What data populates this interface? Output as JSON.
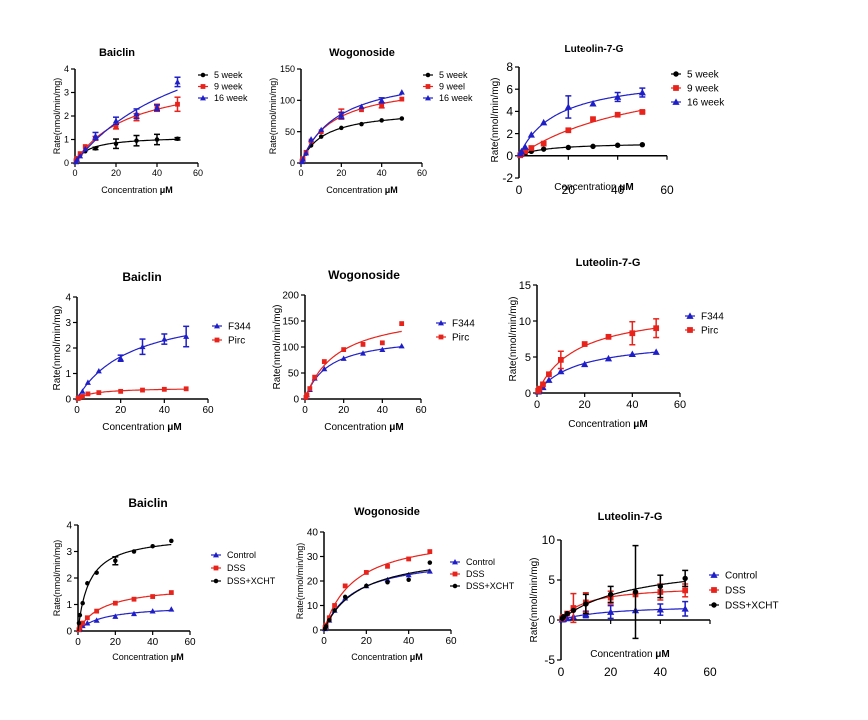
{
  "chart_data": [
    {
      "type": "scatter",
      "title": "Baiclin",
      "xlabel": "Concentration ",
      "xunit": "μM",
      "ylabel": "Rate(nmol/min/mg)",
      "xlim": [
        0,
        60
      ],
      "ylim": [
        0,
        4
      ],
      "xticks": [
        0,
        20,
        40,
        60
      ],
      "yticks": [
        0,
        1,
        2,
        3,
        4
      ],
      "legend": "right",
      "grid": false,
      "series": [
        {
          "name": "5 week",
          "color": "#000000",
          "marker": "circle",
          "x": [
            0.5,
            1,
            2.5,
            5,
            10,
            20,
            30,
            40,
            50
          ],
          "y": [
            0.12,
            0.2,
            0.35,
            0.5,
            0.62,
            0.82,
            0.95,
            1.0,
            1.03
          ],
          "err": [
            0,
            0,
            0,
            0,
            0.05,
            0.2,
            0.22,
            0.22,
            0.05
          ]
        },
        {
          "name": "9 week",
          "color": "#e8231b",
          "marker": "square",
          "x": [
            0.5,
            1,
            2.5,
            5,
            10,
            20,
            30,
            40,
            50
          ],
          "y": [
            0.1,
            0.2,
            0.4,
            0.7,
            1.05,
            1.55,
            1.95,
            2.35,
            2.5
          ],
          "err": [
            0,
            0,
            0,
            0,
            0.08,
            0.1,
            0.15,
            0.15,
            0.3
          ]
        },
        {
          "name": "16 week",
          "color": "#1f1fc8",
          "marker": "triangle",
          "x": [
            0.5,
            1,
            2.5,
            5,
            10,
            20,
            30,
            40,
            50
          ],
          "y": [
            0.05,
            0.15,
            0.3,
            0.6,
            1.15,
            1.8,
            2.1,
            2.35,
            3.45
          ],
          "err": [
            0,
            0,
            0,
            0,
            0.15,
            0.15,
            0.2,
            0.12,
            0.2
          ]
        }
      ]
    },
    {
      "type": "scatter",
      "title": "Wogonoside",
      "xlabel": "Concentration ",
      "xunit": "μM",
      "ylabel": "Rate(nmol/min/mg)",
      "xlim": [
        0,
        60
      ],
      "ylim": [
        0,
        150
      ],
      "xticks": [
        0,
        20,
        40,
        60
      ],
      "yticks": [
        0,
        50,
        100,
        150
      ],
      "legend": "right",
      "grid": false,
      "series": [
        {
          "name": "5 week",
          "color": "#000000",
          "marker": "circle",
          "x": [
            0.5,
            1,
            2.5,
            5,
            10,
            20,
            30,
            40,
            50
          ],
          "y": [
            3,
            6,
            15,
            28,
            42,
            56,
            62,
            68,
            71
          ],
          "err": [
            0,
            0,
            0,
            0,
            0,
            0,
            0,
            0,
            0
          ]
        },
        {
          "name": "9 weel",
          "color": "#e8231b",
          "marker": "square",
          "x": [
            0.5,
            1,
            2.5,
            5,
            10,
            20,
            30,
            40,
            50
          ],
          "y": [
            3,
            7,
            17,
            35,
            50,
            78,
            85,
            92,
            102
          ],
          "err": [
            0,
            0,
            0,
            0,
            0,
            8,
            0,
            4,
            0
          ]
        },
        {
          "name": "16 week",
          "color": "#1f1fc8",
          "marker": "triangle",
          "x": [
            0.5,
            1,
            2.5,
            5,
            10,
            20,
            30,
            40,
            50
          ],
          "y": [
            2,
            6,
            16,
            38,
            53,
            76,
            90,
            100,
            113
          ],
          "err": [
            0,
            0,
            0,
            0,
            0,
            5,
            0,
            4,
            0
          ]
        }
      ]
    },
    {
      "type": "scatter",
      "title": "Luteolin-7-G",
      "xlabel": "Concentration ",
      "xunit": "μM",
      "ylabel": "Rate(nmol/min/mg)",
      "xlim": [
        0,
        60
      ],
      "ylim": [
        -2,
        8
      ],
      "xticks": [
        0,
        20,
        40,
        60
      ],
      "yticks": [
        -2,
        0,
        2,
        4,
        6,
        8
      ],
      "legend": "right",
      "grid": false,
      "series": [
        {
          "name": "5 week",
          "color": "#000000",
          "marker": "circle",
          "x": [
            0.5,
            1,
            2.5,
            5,
            10,
            20,
            30,
            40,
            50
          ],
          "y": [
            0.05,
            0.1,
            0.2,
            0.4,
            0.6,
            0.75,
            0.85,
            0.95,
            1.0
          ],
          "err": [
            0,
            0,
            0,
            0,
            0,
            0,
            0,
            0,
            0
          ]
        },
        {
          "name": "9 week",
          "color": "#e8231b",
          "marker": "square",
          "x": [
            0.5,
            1,
            2.5,
            5,
            10,
            20,
            30,
            40,
            50
          ],
          "y": [
            0.05,
            0.15,
            0.4,
            0.7,
            1.1,
            2.3,
            3.3,
            3.7,
            3.95
          ],
          "err": [
            0,
            0,
            0,
            0,
            0,
            0,
            0,
            0,
            0.1
          ]
        },
        {
          "name": "16 week",
          "color": "#1f1fc8",
          "marker": "triangle",
          "x": [
            0.5,
            1,
            2.5,
            5,
            10,
            20,
            30,
            40,
            50
          ],
          "y": [
            0.2,
            0.4,
            0.8,
            1.9,
            3.0,
            4.4,
            4.7,
            5.3,
            5.7
          ],
          "err": [
            0,
            0,
            0,
            0,
            0,
            1.0,
            0,
            0.4,
            0.4
          ]
        }
      ]
    },
    {
      "type": "scatter",
      "title": "Baiclin",
      "xlabel": "Concentration ",
      "xunit": "μM",
      "ylabel": "Rate(nmol/min/mg)",
      "xlim": [
        0,
        60
      ],
      "ylim": [
        0,
        4
      ],
      "xticks": [
        0,
        20,
        40,
        60
      ],
      "yticks": [
        0,
        1,
        2,
        3,
        4
      ],
      "legend": "right",
      "grid": false,
      "series": [
        {
          "name": "F344",
          "color": "#1f1fc8",
          "marker": "triangle",
          "x": [
            0.5,
            1,
            2.5,
            5,
            10,
            20,
            30,
            40,
            50
          ],
          "y": [
            0.05,
            0.1,
            0.3,
            0.65,
            1.1,
            1.6,
            2.05,
            2.35,
            2.45
          ],
          "err": [
            0,
            0,
            0,
            0,
            0,
            0.12,
            0.3,
            0.2,
            0.4
          ]
        },
        {
          "name": "Pirc",
          "color": "#e8231b",
          "marker": "square",
          "x": [
            0.5,
            1,
            2.5,
            5,
            10,
            20,
            30,
            40,
            50
          ],
          "y": [
            0.02,
            0.05,
            0.1,
            0.2,
            0.25,
            0.3,
            0.35,
            0.38,
            0.4
          ],
          "err": [
            0,
            0,
            0,
            0,
            0,
            0,
            0,
            0,
            0
          ]
        }
      ]
    },
    {
      "type": "scatter",
      "title": "Wogonoside",
      "xlabel": "Concentration ",
      "xunit": "μM",
      "ylabel": "Rate(nmol/min/mg)",
      "xlim": [
        0,
        60
      ],
      "ylim": [
        0,
        200
      ],
      "xticks": [
        0,
        20,
        40,
        60
      ],
      "yticks": [
        0,
        50,
        100,
        150,
        200
      ],
      "legend": "right",
      "grid": false,
      "series": [
        {
          "name": "F344",
          "color": "#1f1fc8",
          "marker": "triangle",
          "x": [
            0.5,
            1,
            2.5,
            5,
            10,
            20,
            30,
            40,
            50
          ],
          "y": [
            3,
            8,
            18,
            40,
            58,
            78,
            88,
            95,
            102
          ],
          "err": [
            0,
            0,
            0,
            0,
            0,
            0,
            0,
            0,
            0
          ]
        },
        {
          "name": "Pirc",
          "color": "#e8231b",
          "marker": "square",
          "x": [
            0.5,
            1,
            2.5,
            5,
            10,
            20,
            30,
            40,
            50
          ],
          "y": [
            3,
            8,
            20,
            42,
            72,
            95,
            105,
            108,
            145
          ],
          "err": [
            0,
            0,
            0,
            0,
            0,
            0,
            0,
            0,
            0
          ]
        }
      ]
    },
    {
      "type": "scatter",
      "title": "Luteolin-7-G",
      "xlabel": "Concentration ",
      "xunit": "μM",
      "ylabel": "Rate(nmol/min/mg)",
      "xlim": [
        0,
        60
      ],
      "ylim": [
        0,
        15
      ],
      "xticks": [
        0,
        20,
        40,
        60
      ],
      "yticks": [
        0,
        5,
        10,
        15
      ],
      "legend": "right",
      "grid": false,
      "series": [
        {
          "name": "F344",
          "color": "#1f1fc8",
          "marker": "triangle",
          "x": [
            0.5,
            1,
            2.5,
            5,
            10,
            20,
            30,
            40,
            50
          ],
          "y": [
            0.2,
            0.4,
            0.8,
            1.8,
            3.0,
            4.0,
            4.8,
            5.4,
            5.7
          ],
          "err": [
            0,
            0,
            0,
            0,
            0,
            0,
            0,
            0,
            0
          ]
        },
        {
          "name": "Pirc",
          "color": "#e8231b",
          "marker": "square",
          "x": [
            0.5,
            1,
            2.5,
            5,
            10,
            20,
            30,
            40,
            50
          ],
          "y": [
            0.3,
            0.6,
            1.2,
            2.6,
            4.6,
            6.8,
            7.8,
            8.3,
            9.0
          ],
          "err": [
            0,
            0,
            0,
            0,
            1.2,
            0,
            0,
            1.6,
            1.3
          ]
        }
      ]
    },
    {
      "type": "scatter",
      "title": "Baiclin",
      "xlabel": "Concentration ",
      "xunit": "μM",
      "ylabel": "Rate(nmol/min/mg)",
      "xlim": [
        0,
        60
      ],
      "ylim": [
        0,
        4
      ],
      "xticks": [
        0,
        20,
        40,
        60
      ],
      "yticks": [
        0,
        1,
        2,
        3,
        4
      ],
      "legend": "right",
      "grid": false,
      "series": [
        {
          "name": "Control",
          "color": "#1f1fc8",
          "marker": "triangle",
          "x": [
            0.5,
            1,
            2.5,
            5,
            10,
            20,
            30,
            40,
            50
          ],
          "y": [
            0.05,
            0.1,
            0.2,
            0.3,
            0.4,
            0.55,
            0.65,
            0.75,
            0.82
          ],
          "err": [
            0,
            0,
            0,
            0,
            0,
            0,
            0,
            0,
            0
          ]
        },
        {
          "name": "DSS",
          "color": "#e8231b",
          "marker": "square",
          "x": [
            0.5,
            1,
            2.5,
            5,
            10,
            20,
            30,
            40,
            50
          ],
          "y": [
            0.05,
            0.15,
            0.3,
            0.5,
            0.75,
            1.05,
            1.2,
            1.3,
            1.45
          ],
          "err": [
            0,
            0,
            0,
            0,
            0,
            0,
            0,
            0,
            0
          ]
        },
        {
          "name": "DSS+XCHT",
          "color": "#000000",
          "marker": "circle",
          "x": [
            0.5,
            1,
            2.5,
            5,
            10,
            20,
            30,
            40,
            50
          ],
          "y": [
            0.3,
            0.6,
            1.05,
            1.8,
            2.2,
            2.65,
            3.0,
            3.2,
            3.4
          ],
          "err": [
            0,
            0,
            0,
            0,
            0,
            0.15,
            0,
            0,
            0
          ]
        }
      ]
    },
    {
      "type": "scatter",
      "title": "Wogonoside",
      "xlabel": "Concentration ",
      "xunit": "μM",
      "ylabel": "Rate(nmol/min/mg)",
      "xlim": [
        0,
        60
      ],
      "ylim": [
        0,
        40
      ],
      "xticks": [
        0,
        20,
        40,
        60
      ],
      "yticks": [
        0,
        10,
        20,
        30,
        40
      ],
      "legend": "right",
      "grid": false,
      "series": [
        {
          "name": "Control",
          "color": "#1f1fc8",
          "marker": "triangle",
          "x": [
            0.5,
            1,
            2.5,
            5,
            10,
            20,
            30,
            40,
            50
          ],
          "y": [
            0.5,
            1.5,
            4,
            8,
            13,
            18,
            20.5,
            22.5,
            24
          ],
          "err": [
            0,
            0,
            0,
            0,
            0,
            0,
            0,
            0,
            0
          ]
        },
        {
          "name": "DSS",
          "color": "#e8231b",
          "marker": "square",
          "x": [
            0.5,
            1,
            2.5,
            5,
            10,
            20,
            30,
            40,
            50
          ],
          "y": [
            1,
            2,
            5,
            10,
            18,
            23.5,
            26,
            29,
            32
          ],
          "err": [
            0,
            0,
            0,
            0,
            0,
            0,
            0,
            0,
            0
          ]
        },
        {
          "name": "DSS+XCHT",
          "color": "#000000",
          "marker": "circle",
          "x": [
            0.5,
            1,
            2.5,
            5,
            10,
            20,
            30,
            40,
            50
          ],
          "y": [
            0.5,
            1.5,
            4,
            8,
            13.5,
            18,
            19.5,
            20.5,
            27.5
          ],
          "err": [
            0,
            0,
            0,
            0,
            0,
            0,
            0,
            0,
            0
          ]
        }
      ]
    },
    {
      "type": "scatter",
      "title": "Luteolin-7-G",
      "xlabel": "Concentration ",
      "xunit": "μM",
      "ylabel": "Rate(nmol/min/mg)",
      "xlim": [
        0,
        60
      ],
      "ylim": [
        -5,
        10
      ],
      "xticks": [
        0,
        20,
        40,
        60
      ],
      "yticks": [
        -5,
        0,
        5,
        10
      ],
      "legend": "right",
      "grid": false,
      "series": [
        {
          "name": "Control",
          "color": "#1f1fc8",
          "marker": "triangle",
          "x": [
            0.5,
            1,
            2.5,
            5,
            10,
            20,
            30,
            40,
            50
          ],
          "y": [
            0.05,
            0.1,
            0.2,
            0.4,
            0.7,
            1.0,
            1.2,
            1.3,
            1.4
          ],
          "err": [
            0,
            0,
            0,
            0,
            0.4,
            0.8,
            0,
            0.7,
            0.9
          ]
        },
        {
          "name": "DSS",
          "color": "#e8231b",
          "marker": "square",
          "x": [
            0.5,
            1,
            2.5,
            5,
            10,
            20,
            30,
            40,
            50
          ],
          "y": [
            0.2,
            0.4,
            0.8,
            1.5,
            2.2,
            2.8,
            3.2,
            3.5,
            3.7
          ],
          "err": [
            0,
            0,
            0,
            1.8,
            1.2,
            0.8,
            0,
            1.0,
            0.8
          ]
        },
        {
          "name": "DSS+XCHT",
          "color": "#000000",
          "marker": "circle",
          "x": [
            0.5,
            1,
            2.5,
            5,
            10,
            20,
            30,
            40,
            50
          ],
          "y": [
            0.2,
            0.4,
            0.8,
            1.2,
            2.0,
            3.2,
            3.5,
            4.2,
            5.2
          ],
          "err": [
            0,
            0,
            0,
            0,
            1.2,
            1.0,
            5.8,
            1.4,
            1.0
          ]
        }
      ]
    }
  ]
}
